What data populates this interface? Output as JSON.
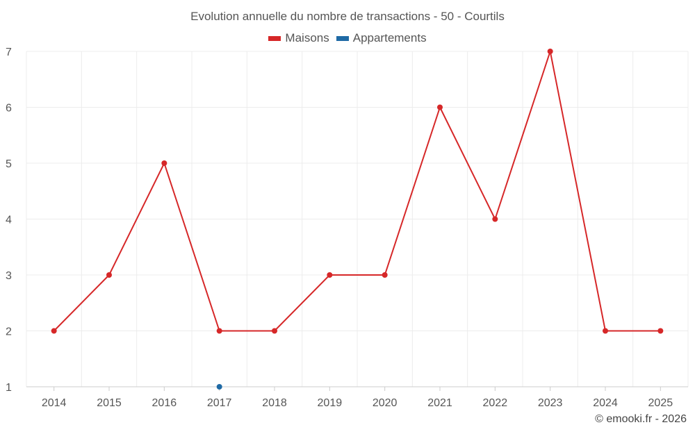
{
  "chart_data": {
    "type": "line",
    "title": "Evolution annuelle du nombre de transactions - 50 - Courtils",
    "categories": [
      "2014",
      "2015",
      "2016",
      "2017",
      "2018",
      "2019",
      "2020",
      "2021",
      "2022",
      "2023",
      "2024",
      "2025"
    ],
    "ylim": [
      1,
      7
    ],
    "yticks": [
      1,
      2,
      3,
      4,
      5,
      6,
      7
    ],
    "grid": true,
    "legend_position": "top-center",
    "series": [
      {
        "name": "Maisons",
        "color": "#d62728",
        "values": [
          2,
          3,
          5,
          2,
          2,
          3,
          3,
          6,
          4,
          7,
          2,
          2
        ]
      },
      {
        "name": "Appartements",
        "color": "#1f6aa5",
        "values": [
          null,
          null,
          null,
          1,
          null,
          null,
          null,
          null,
          null,
          null,
          null,
          null
        ]
      }
    ]
  },
  "credit": "© emooki.fr - 2026"
}
